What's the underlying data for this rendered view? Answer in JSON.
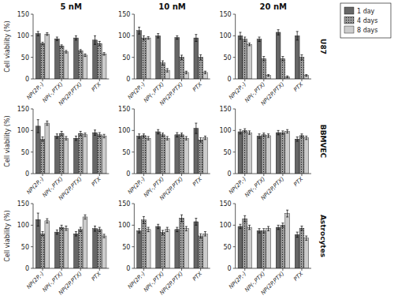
{
  "chart_data": [
    {
      "type": "bar",
      "title": "5 nM",
      "ylabel": "Cell viability (%)",
      "legend": "upper right",
      "categories": [
        "NP(2P,-)",
        "NP(-,PTX)",
        "NP(2P,PTX)",
        "PTX"
      ],
      "ylim": [
        0,
        150
      ],
      "yticks": [
        0,
        50,
        100,
        150
      ],
      "series": [
        {
          "name": "1 day",
          "color": "#666666",
          "values": [
            105,
            93,
            95,
            90
          ],
          "errors": [
            5,
            4,
            5,
            10
          ]
        },
        {
          "name": "4 days",
          "color": "#999999",
          "values": [
            82,
            76,
            65,
            82
          ],
          "errors": [
            3,
            3,
            3,
            5
          ]
        },
        {
          "name": "8 days",
          "color": "#cccccc",
          "values": [
            104,
            63,
            55,
            58
          ],
          "errors": [
            3,
            3,
            3,
            3
          ]
        }
      ]
    },
    {
      "type": "bar",
      "title": "10 nM",
      "categories": [
        "NP(2P,-)",
        "NP(-,PTX)",
        "NP(2P,PTX)",
        "PTX"
      ],
      "ylim": [
        0,
        150
      ],
      "yticks": [
        0,
        50,
        100,
        150
      ],
      "series": [
        {
          "color": "#666666",
          "values": [
            112,
            100,
            96,
            95
          ],
          "errors": [
            8,
            5,
            4,
            8
          ]
        },
        {
          "color": "#999999",
          "values": [
            95,
            37,
            50,
            50
          ],
          "errors": [
            5,
            5,
            5,
            6
          ]
        },
        {
          "color": "#cccccc",
          "values": [
            95,
            20,
            15,
            15
          ],
          "errors": [
            3,
            4,
            3,
            3
          ]
        }
      ]
    },
    {
      "type": "bar",
      "title": "20 nM",
      "annotations": [
        {
          "text": "U87"
        }
      ],
      "categories": [
        "NP(2P,-)",
        "NP(-,PTX)",
        "NP(2P,PTX)",
        "PTX"
      ],
      "ylim": [
        0,
        150
      ],
      "yticks": [
        0,
        50,
        100,
        150
      ],
      "series": [
        {
          "color": "#666666",
          "values": [
            100,
            92,
            108,
            100
          ],
          "errors": [
            8,
            5,
            6,
            10
          ]
        },
        {
          "color": "#999999",
          "values": [
            92,
            47,
            47,
            50
          ],
          "errors": [
            5,
            5,
            5,
            6
          ]
        },
        {
          "color": "#cccccc",
          "values": [
            80,
            8,
            5,
            8
          ],
          "errors": [
            3,
            2,
            2,
            2
          ]
        }
      ]
    },
    {
      "type": "bar",
      "ylabel": "Cell viability (%)",
      "categories": [
        "NP(2P,-)",
        "NP(-,PTX)",
        "NP(2P,PTX)",
        "PTX"
      ],
      "ylim": [
        0,
        150
      ],
      "yticks": [
        0,
        50,
        100,
        150
      ],
      "series": [
        {
          "color": "#666666",
          "values": [
            110,
            87,
            82,
            95
          ],
          "errors": [
            15,
            5,
            5,
            6
          ]
        },
        {
          "color": "#999999",
          "values": [
            80,
            93,
            93,
            90
          ],
          "errors": [
            5,
            5,
            5,
            5
          ]
        },
        {
          "color": "#cccccc",
          "values": [
            117,
            82,
            90,
            87
          ],
          "errors": [
            5,
            4,
            4,
            4
          ]
        }
      ]
    },
    {
      "type": "bar",
      "categories": [
        "NP(2P,-)",
        "NP(-,PTX)",
        "NP(2P,PTX)",
        "PTX"
      ],
      "ylim": [
        0,
        150
      ],
      "yticks": [
        0,
        50,
        100,
        150
      ],
      "series": [
        {
          "color": "#666666",
          "values": [
            87,
            97,
            90,
            105
          ],
          "errors": [
            5,
            5,
            5,
            12
          ]
        },
        {
          "color": "#999999",
          "values": [
            88,
            90,
            90,
            78
          ],
          "errors": [
            4,
            4,
            4,
            5
          ]
        },
        {
          "color": "#cccccc",
          "values": [
            82,
            82,
            82,
            83
          ],
          "errors": [
            4,
            4,
            4,
            4
          ]
        }
      ]
    },
    {
      "type": "bar",
      "annotations": [
        {
          "text": "BBMVEC"
        }
      ],
      "categories": [
        "NP(2P,-)",
        "NP(-,PTX)",
        "NP(2P,PTX)",
        "PTX"
      ],
      "ylim": [
        0,
        150
      ],
      "yticks": [
        0,
        50,
        100,
        150
      ],
      "series": [
        {
          "color": "#666666",
          "values": [
            97,
            87,
            95,
            80
          ],
          "errors": [
            5,
            5,
            5,
            5
          ]
        },
        {
          "color": "#999999",
          "values": [
            100,
            90,
            95,
            88
          ],
          "errors": [
            4,
            4,
            4,
            4
          ]
        },
        {
          "color": "#cccccc",
          "values": [
            95,
            88,
            98,
            83
          ],
          "errors": [
            4,
            4,
            4,
            4
          ]
        }
      ]
    },
    {
      "type": "bar",
      "ylabel": "Cell viability (%)",
      "categories": [
        "NP(2P,-)",
        "NP(-,PTX)",
        "NP(2P,PTX)",
        "PTX"
      ],
      "ylim": [
        0,
        150
      ],
      "yticks": [
        0,
        50,
        100,
        150
      ],
      "series": [
        {
          "color": "#666666",
          "values": [
            113,
            84,
            80,
            92
          ],
          "errors": [
            15,
            5,
            5,
            6
          ]
        },
        {
          "color": "#999999",
          "values": [
            80,
            95,
            90,
            90
          ],
          "errors": [
            5,
            5,
            5,
            5
          ]
        },
        {
          "color": "#cccccc",
          "values": [
            110,
            93,
            119,
            75
          ],
          "errors": [
            5,
            5,
            5,
            4
          ]
        }
      ]
    },
    {
      "type": "bar",
      "categories": [
        "NP(2P,-)",
        "NP(-,PTX)",
        "NP(2P,PTX)",
        "PTX"
      ],
      "ylim": [
        0,
        150
      ],
      "yticks": [
        0,
        50,
        100,
        150
      ],
      "series": [
        {
          "color": "#666666",
          "values": [
            87,
            97,
            90,
            108
          ],
          "errors": [
            5,
            5,
            5,
            8
          ]
        },
        {
          "color": "#999999",
          "values": [
            112,
            83,
            116,
            75
          ],
          "errors": [
            8,
            5,
            8,
            5
          ]
        },
        {
          "color": "#cccccc",
          "values": [
            90,
            90,
            92,
            80
          ],
          "errors": [
            5,
            5,
            5,
            5
          ]
        }
      ]
    },
    {
      "type": "bar",
      "annotations": [
        {
          "text": "Astrocytes"
        }
      ],
      "categories": [
        "NP(2P,-)",
        "NP(-,PTX)",
        "NP(2P,PTX)",
        "PTX"
      ],
      "ylim": [
        0,
        150
      ],
      "yticks": [
        0,
        50,
        100,
        150
      ],
      "series": [
        {
          "color": "#666666",
          "values": [
            97,
            87,
            95,
            78
          ],
          "errors": [
            5,
            5,
            5,
            6
          ]
        },
        {
          "color": "#999999",
          "values": [
            115,
            87,
            100,
            93
          ],
          "errors": [
            7,
            5,
            5,
            5
          ]
        },
        {
          "color": "#cccccc",
          "values": [
            95,
            92,
            127,
            70
          ],
          "errors": [
            5,
            5,
            8,
            5
          ]
        }
      ]
    }
  ]
}
